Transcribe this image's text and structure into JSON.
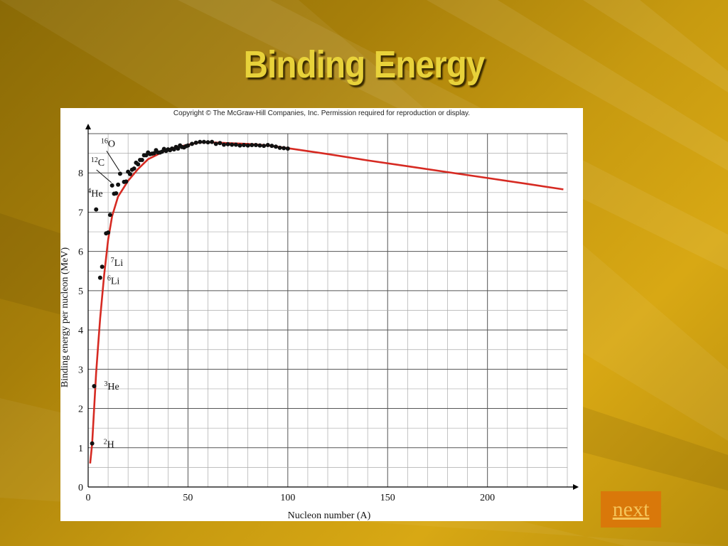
{
  "slide": {
    "title": "Binding Energy"
  },
  "figure": {
    "copyright": "Copyright © The McGraw-Hill Companies, Inc. Permission required for reproduction or display."
  },
  "nav": {
    "next_label": "next"
  },
  "chart_data": {
    "type": "scatter",
    "title": "",
    "xlabel": "Nucleon number (A)",
    "ylabel": "Binding energy per nucleon (MeV)",
    "xlim": [
      0,
      240
    ],
    "ylim": [
      0,
      9
    ],
    "x_ticks": [
      0,
      50,
      100,
      150,
      200
    ],
    "y_ticks": [
      0,
      1,
      2,
      3,
      4,
      5,
      6,
      7,
      8
    ],
    "grid": true,
    "series": [
      {
        "type": "line",
        "color": "#d62a22",
        "x": [
          1,
          2,
          3,
          4,
          5,
          6,
          8,
          10,
          12,
          15,
          20,
          25,
          30,
          40,
          50,
          56,
          60,
          70,
          80,
          90,
          100,
          120,
          140,
          160,
          180,
          200,
          220,
          238
        ],
        "y": [
          0.6,
          1.1,
          2.0,
          2.9,
          3.6,
          4.3,
          5.4,
          6.3,
          6.9,
          7.4,
          7.8,
          8.1,
          8.35,
          8.6,
          8.72,
          8.78,
          8.78,
          8.76,
          8.74,
          8.7,
          8.63,
          8.48,
          8.32,
          8.17,
          8.02,
          7.87,
          7.72,
          7.58
        ]
      },
      {
        "type": "scatter",
        "color": "#111111",
        "x": [
          2,
          3,
          4,
          6,
          7,
          9,
          10,
          11,
          12,
          13,
          14,
          15,
          16,
          18,
          19,
          20,
          21,
          22,
          23,
          24,
          25,
          26,
          27,
          28,
          29,
          30,
          31,
          32,
          33,
          34,
          35,
          36,
          37,
          38,
          39,
          40,
          41,
          42,
          43,
          44,
          45,
          46,
          47,
          48,
          49,
          50,
          52,
          54,
          56,
          58,
          60,
          62,
          64,
          66,
          68,
          70,
          72,
          74,
          76,
          78,
          80,
          82,
          84,
          86,
          88,
          90,
          92,
          94,
          96,
          98,
          100
        ],
        "y": [
          1.11,
          2.57,
          7.07,
          5.33,
          5.61,
          6.46,
          6.48,
          6.93,
          7.68,
          7.47,
          7.48,
          7.7,
          7.98,
          7.77,
          7.78,
          8.03,
          7.97,
          8.08,
          8.11,
          8.26,
          8.22,
          8.33,
          8.33,
          8.45,
          8.45,
          8.52,
          8.48,
          8.49,
          8.5,
          8.58,
          8.52,
          8.52,
          8.54,
          8.61,
          8.56,
          8.6,
          8.58,
          8.62,
          8.6,
          8.66,
          8.62,
          8.7,
          8.66,
          8.65,
          8.68,
          8.7,
          8.74,
          8.77,
          8.79,
          8.79,
          8.78,
          8.79,
          8.74,
          8.76,
          8.72,
          8.73,
          8.72,
          8.72,
          8.7,
          8.71,
          8.7,
          8.71,
          8.71,
          8.7,
          8.69,
          8.71,
          8.69,
          8.67,
          8.64,
          8.63,
          8.62
        ]
      }
    ],
    "annotations": [
      {
        "text": "2H",
        "mass": "2",
        "symbol": "H",
        "x": 2,
        "y": 1.11
      },
      {
        "text": "3He",
        "mass": "3",
        "symbol": "He",
        "x": 3,
        "y": 2.57
      },
      {
        "text": "6Li",
        "mass": "6",
        "symbol": "Li",
        "x": 6,
        "y": 5.33
      },
      {
        "text": "7Li",
        "mass": "7",
        "symbol": "Li",
        "x": 7,
        "y": 5.61
      },
      {
        "text": "4He",
        "mass": "4",
        "symbol": "He",
        "x": 4,
        "y": 7.07
      },
      {
        "text": "12C",
        "mass": "12",
        "symbol": "C",
        "x": 12,
        "y": 7.68
      },
      {
        "text": "16O",
        "mass": "16",
        "symbol": "O",
        "x": 16,
        "y": 7.98
      }
    ]
  }
}
